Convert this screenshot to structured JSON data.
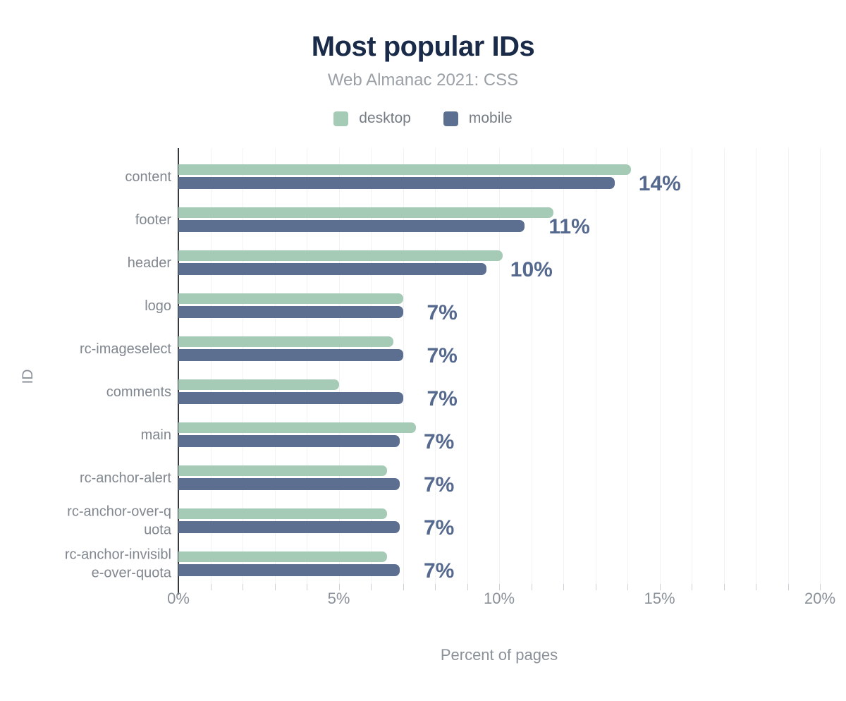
{
  "header": {
    "title": "Most popular IDs",
    "subtitle": "Web Almanac 2021: CSS"
  },
  "legend": {
    "items": [
      {
        "label": "desktop",
        "color": "#a5cab5"
      },
      {
        "label": "mobile",
        "color": "#5c6f90"
      }
    ]
  },
  "axes": {
    "x_title": "Percent of pages",
    "y_title": "ID"
  },
  "colors": {
    "title": "#1a2b49",
    "desktop_bar": "#a5cab5",
    "mobile_bar": "#5c6f90",
    "value_label": "#55688e",
    "axis_text": "#8b9199"
  },
  "chart_data": {
    "type": "bar",
    "orientation": "horizontal",
    "title": "Most popular IDs",
    "subtitle": "Web Almanac 2021: CSS",
    "xlabel": "Percent of pages",
    "ylabel": "ID",
    "unit": "%",
    "xlim": [
      0,
      20
    ],
    "x_tick_values": [
      0,
      5,
      10,
      15,
      20
    ],
    "x_ticks": [
      "0%",
      "5%",
      "10%",
      "15%",
      "20%"
    ],
    "grid": "vertical minor gridlines every 1%",
    "legend_position": "top",
    "categories": [
      "content",
      "footer",
      "header",
      "logo",
      "rc-imageselect",
      "comments",
      "main",
      "rc-anchor-alert",
      "rc-anchor-over-quota",
      "rc-anchor-invisible-over-quota"
    ],
    "series": [
      {
        "name": "desktop",
        "color": "#a5cab5",
        "values": [
          14.1,
          11.7,
          10.1,
          7.0,
          6.7,
          5.0,
          7.4,
          6.5,
          6.5,
          6.5
        ]
      },
      {
        "name": "mobile",
        "color": "#5c6f90",
        "values": [
          13.6,
          10.8,
          9.6,
          7.0,
          7.0,
          7.0,
          6.9,
          6.9,
          6.9,
          6.9
        ]
      }
    ],
    "value_labels": [
      "14%",
      "11%",
      "10%",
      "7%",
      "7%",
      "7%",
      "7%",
      "7%",
      "7%",
      "7%"
    ]
  }
}
